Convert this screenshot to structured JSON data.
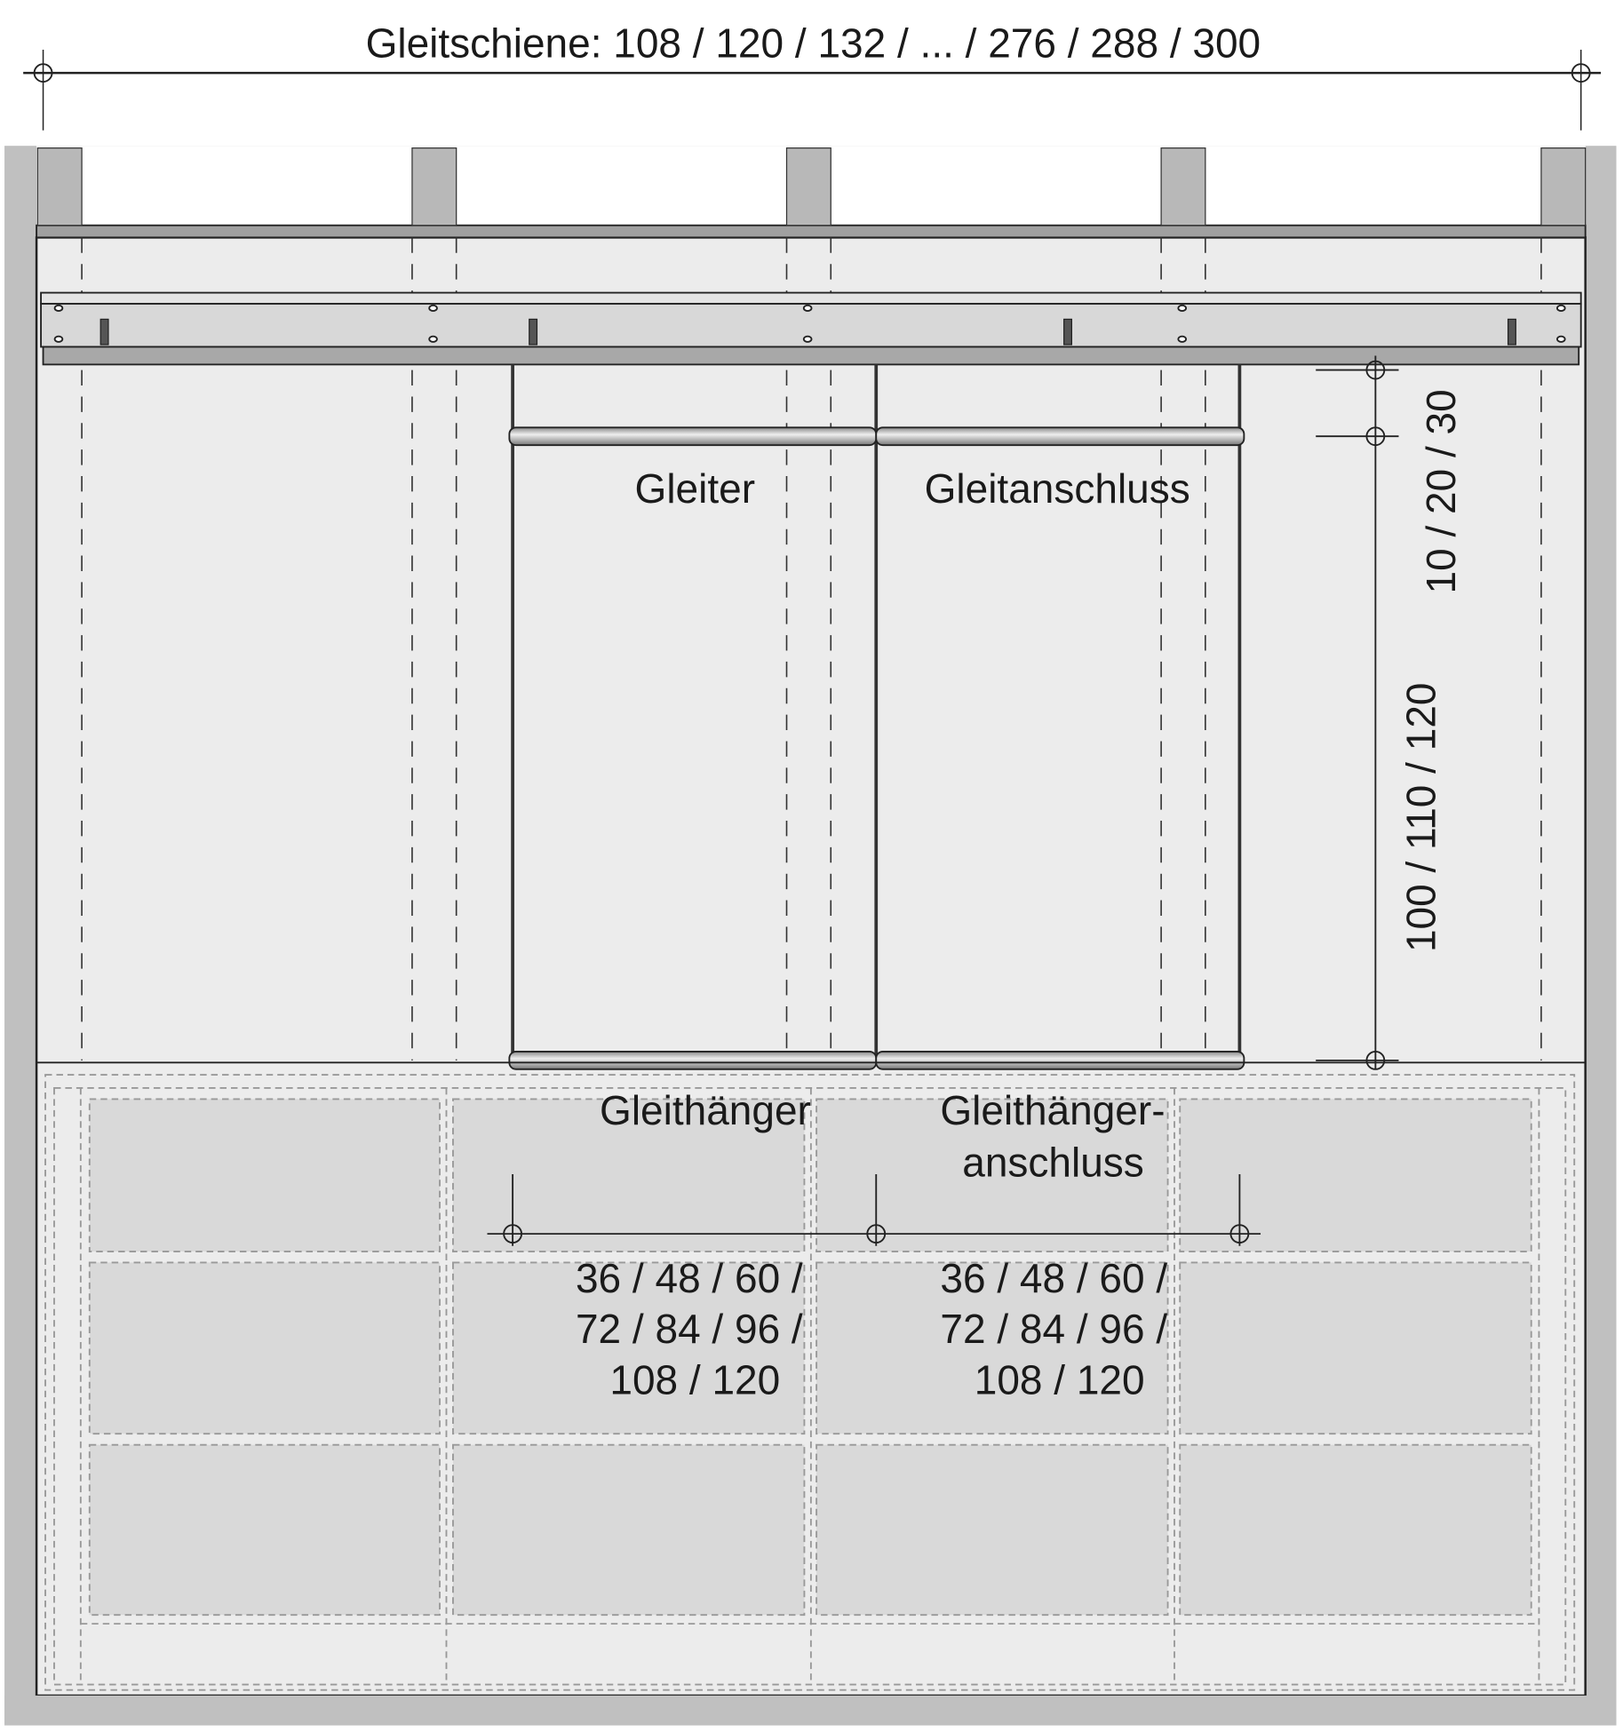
{
  "dimensions": {
    "rail_length": "Gleitschiene: 108 / 120 / 132 / ... / 276 / 288 / 300",
    "drop_short": "10 / 20 / 30",
    "drop_long": "100 / 110 / 120",
    "spacing_left": [
      "36 / 48 / 60 /",
      "72 / 84 / 96 /",
      "108 / 120"
    ],
    "spacing_right": [
      "36 / 48 / 60 /",
      "72 / 84 / 96 /",
      "108 / 120"
    ]
  },
  "labels": {
    "glider": "Gleiter",
    "glider_connector": "Gleitanschluss",
    "hanger": "Gleithänger",
    "hanger_connector_1": "Gleithänger-",
    "hanger_connector_2": "anschluss"
  },
  "colors": {
    "wall": "#c0c0c0",
    "background": "#ececec",
    "panel": "#d9d9d9",
    "beam": "#a0a0a0",
    "wood": "#b8b8b8"
  }
}
